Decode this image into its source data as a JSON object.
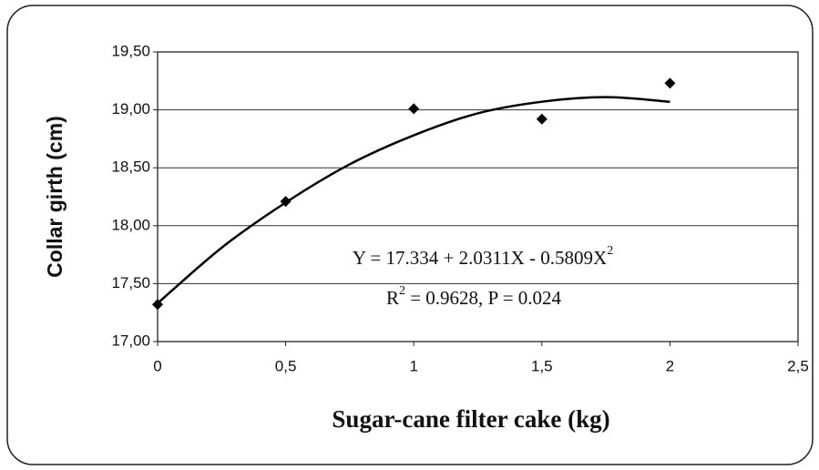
{
  "chart_data": {
    "type": "scatter",
    "xlabel": "Sugar-cane filter cake (kg)",
    "ylabel": "Collar girth (cm)",
    "x": [
      0,
      0.5,
      1,
      1.5,
      2
    ],
    "series": [
      {
        "color": "#000000",
        "values": [
          17.32,
          18.21,
          19.01,
          18.92,
          19.23
        ]
      }
    ],
    "trendline": {
      "color": "#000000",
      "x": [
        0,
        0.25,
        0.5,
        0.75,
        1,
        1.25,
        1.5,
        1.75,
        2
      ],
      "values": [
        17.33,
        17.81,
        18.2,
        18.53,
        18.78,
        18.97,
        19.07,
        19.11,
        19.07
      ]
    },
    "xlim": [
      0,
      2.5
    ],
    "ylim": [
      17,
      19.5
    ],
    "xticks": [
      0,
      {
        "value": 0.5,
        "label": "0,5"
      },
      1,
      {
        "value": 1.5,
        "label": "1,5"
      },
      2,
      {
        "value": 2.5,
        "label": "2,5"
      }
    ],
    "yticks": [
      {
        "value": 17,
        "label": "17,00"
      },
      {
        "value": 17.5,
        "label": "17,50"
      },
      {
        "value": 18,
        "label": "18,00"
      },
      {
        "value": 18.5,
        "label": "18,50"
      },
      {
        "value": 19,
        "label": "19,00"
      },
      {
        "value": 19.5,
        "label": "19,50"
      }
    ],
    "grid": true,
    "annotations": [
      {
        "text": "Y = 17.334 + 2.0311X - 0.5809X",
        "sup": "2"
      },
      {
        "prefix": "R",
        "sup": "2",
        "text": " = 0.9628, P = 0.024"
      }
    ]
  }
}
